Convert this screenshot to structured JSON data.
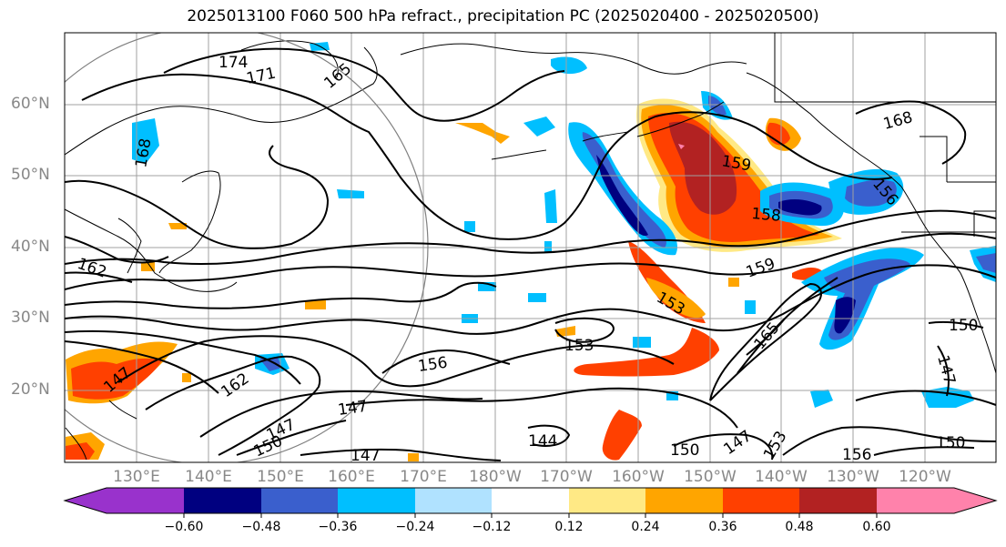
{
  "title": "2025013100 F060 500 hPa refract., precipitation PC (2025020400 - 2025020500)",
  "lat_labels": [
    "60°N",
    "50°N",
    "40°N",
    "30°N",
    "20°N"
  ],
  "lon_labels": [
    "130°E",
    "140°E",
    "150°E",
    "160°E",
    "170°E",
    "180°W",
    "170°W",
    "160°W",
    "150°W",
    "140°W",
    "130°W",
    "120°W"
  ],
  "colorbar": {
    "ticks": [
      "−0.60",
      "−0.48",
      "−0.36",
      "−0.24",
      "−0.12",
      "0.12",
      "0.24",
      "0.36",
      "0.48",
      "0.60"
    ],
    "colors": [
      "#9932cc",
      "#000080",
      "#3a5fcd",
      "#00bfff",
      "#b0e2ff",
      "#ffffff",
      "#ffe985",
      "#ffa500",
      "#ff4000",
      "#b22222",
      "#ff82ab"
    ]
  },
  "contour_labels": [
    "174",
    "171",
    "165",
    "168",
    "162",
    "168",
    "159",
    "158",
    "159",
    "153",
    "156",
    "162",
    "153",
    "156",
    "147",
    "147",
    "150",
    "147",
    "147",
    "144",
    "150",
    "147",
    "153",
    "156",
    "150",
    "150",
    "147",
    "165"
  ],
  "colors": {
    "contour": "#000000",
    "coast": "#000000",
    "grid": "#a0a0a0",
    "circle": "#808080"
  }
}
